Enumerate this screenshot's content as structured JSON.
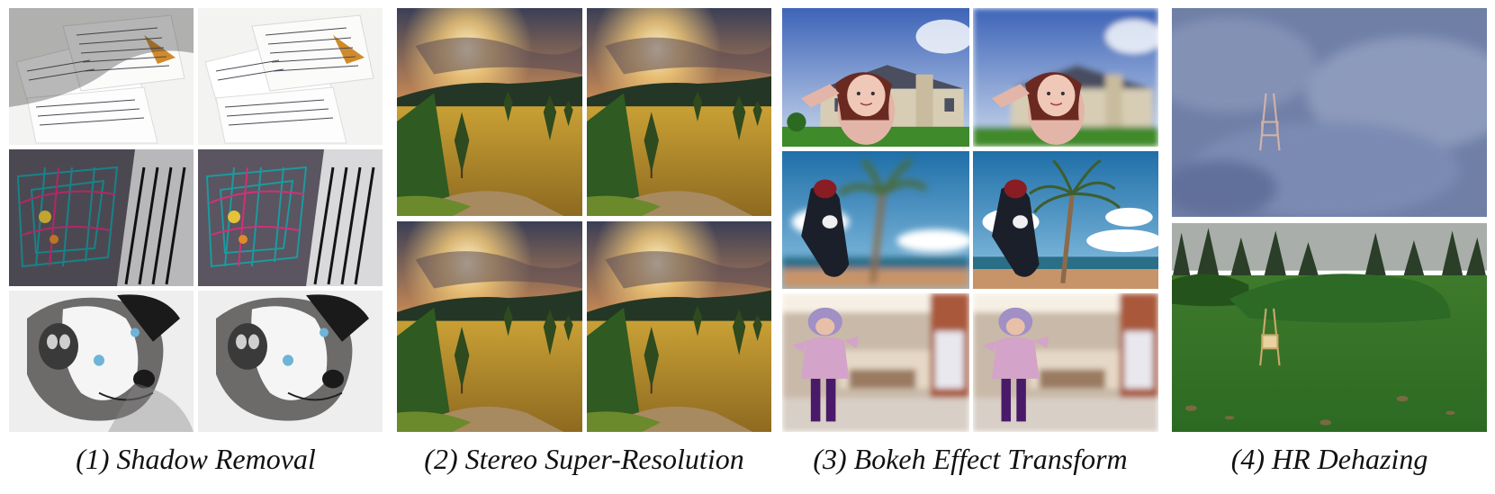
{
  "captions": {
    "shadow_removal": "(1) Shadow Removal",
    "stereo_sr": "(2) Stereo Super-Resolution",
    "bokeh": "(3) Bokeh Effect Transform",
    "hr_dehazing": "(4) HR Dehazing"
  },
  "colors": {
    "caption_text": "#111111",
    "background": "#ffffff"
  }
}
